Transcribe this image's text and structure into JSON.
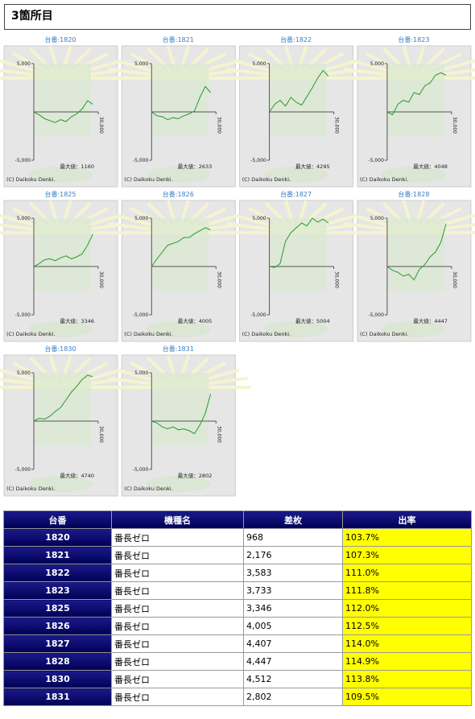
{
  "header": {
    "title": "3箇所目"
  },
  "chart_data": [
    {
      "type": "line",
      "title": "台番:1820",
      "x": [
        0,
        2500,
        5000,
        7500,
        10000,
        12500,
        15000,
        17500,
        20000,
        22500,
        25000,
        27500
      ],
      "values": [
        0,
        -300,
        -700,
        -900,
        -1100,
        -800,
        -1000,
        -500,
        -200,
        300,
        1160,
        800
      ],
      "color": "#2a9a2a",
      "xlim": [
        0,
        30000
      ],
      "ylim": [
        -6000,
        6000
      ],
      "yticks": [
        {
          "value": 5000,
          "label": "5,000"
        },
        {
          "value": -5000,
          "label": "-5,000"
        }
      ],
      "xticks": [
        {
          "value": 30000,
          "label": "30,000"
        }
      ],
      "annotation": "最大値：1160",
      "credit": "(C) Daikoku Denki."
    },
    {
      "type": "line",
      "title": "台番:1821",
      "x": [
        0,
        2500,
        5000,
        7500,
        10000,
        12500,
        15000,
        17500,
        20000,
        22500,
        25000,
        27500
      ],
      "values": [
        0,
        -400,
        -500,
        -800,
        -600,
        -700,
        -400,
        -200,
        100,
        1500,
        2633,
        2000
      ],
      "color": "#2a9a2a",
      "xlim": [
        0,
        30000
      ],
      "ylim": [
        -6000,
        6000
      ],
      "yticks": [
        {
          "value": 5000,
          "label": "5,000"
        },
        {
          "value": -5000,
          "label": "-5,000"
        }
      ],
      "xticks": [
        {
          "value": 30000,
          "label": "30,000"
        }
      ],
      "annotation": "最大値：2633",
      "credit": "(C) Daikoku Denki."
    },
    {
      "type": "line",
      "title": "台番:1822",
      "x": [
        0,
        2500,
        5000,
        7500,
        10000,
        12500,
        15000,
        17500,
        20000,
        22500,
        25000,
        27500
      ],
      "values": [
        0,
        800,
        1200,
        600,
        1500,
        1000,
        700,
        1600,
        2500,
        3500,
        4295,
        3700
      ],
      "color": "#2a9a2a",
      "xlim": [
        0,
        30000
      ],
      "ylim": [
        -6000,
        6000
      ],
      "yticks": [
        {
          "value": 5000,
          "label": "5,000"
        },
        {
          "value": -5000,
          "label": "-5,000"
        }
      ],
      "xticks": [
        {
          "value": 30000,
          "label": "30,000"
        }
      ],
      "annotation": "最大値：4295",
      "credit": "(C) Daikoku Denki."
    },
    {
      "type": "line",
      "title": "台番:1823",
      "x": [
        0,
        2500,
        5000,
        7500,
        10000,
        12500,
        15000,
        17500,
        20000,
        22500,
        25000,
        27500
      ],
      "values": [
        0,
        -300,
        800,
        1200,
        1000,
        2000,
        1800,
        2700,
        3000,
        3800,
        4048,
        3800
      ],
      "color": "#2a9a2a",
      "xlim": [
        0,
        30000
      ],
      "ylim": [
        -6000,
        6000
      ],
      "yticks": [
        {
          "value": 5000,
          "label": "5,000"
        },
        {
          "value": -5000,
          "label": "-5,000"
        }
      ],
      "xticks": [
        {
          "value": 30000,
          "label": "30,000"
        }
      ],
      "annotation": "最大値：4048",
      "credit": "(C) Daikoku Denki."
    },
    {
      "type": "line",
      "title": "台番:1825",
      "x": [
        0,
        2500,
        5000,
        7500,
        10000,
        12500,
        15000,
        17500,
        20000,
        22500,
        25000,
        27500
      ],
      "values": [
        0,
        300,
        700,
        800,
        600,
        900,
        1100,
        800,
        1000,
        1300,
        2200,
        3346
      ],
      "color": "#2a9a2a",
      "xlim": [
        0,
        30000
      ],
      "ylim": [
        -6000,
        6000
      ],
      "yticks": [
        {
          "value": 5000,
          "label": "5,000"
        },
        {
          "value": -5000,
          "label": "-5,000"
        }
      ],
      "xticks": [
        {
          "value": 30000,
          "label": "30,000"
        }
      ],
      "annotation": "最大値：3346",
      "credit": "(C) Daikoku Denki."
    },
    {
      "type": "line",
      "title": "台番:1826",
      "x": [
        0,
        2500,
        5000,
        7500,
        10000,
        12500,
        15000,
        17500,
        20000,
        22500,
        25000,
        27500
      ],
      "values": [
        0,
        800,
        1500,
        2200,
        2400,
        2600,
        3000,
        3000,
        3400,
        3700,
        4005,
        3800
      ],
      "color": "#2a9a2a",
      "xlim": [
        0,
        30000
      ],
      "ylim": [
        -6000,
        6000
      ],
      "yticks": [
        {
          "value": 5000,
          "label": "5,000"
        },
        {
          "value": -5000,
          "label": "-5,000"
        }
      ],
      "xticks": [
        {
          "value": 30000,
          "label": "30,000"
        }
      ],
      "annotation": "最大値：4005",
      "credit": "(C) Daikoku Denki."
    },
    {
      "type": "line",
      "title": "台番:1827",
      "x": [
        0,
        2500,
        5000,
        7500,
        10000,
        12500,
        15000,
        17500,
        20000,
        22500,
        25000,
        27500
      ],
      "values": [
        0,
        -100,
        300,
        2600,
        3500,
        4000,
        4500,
        4200,
        5004,
        4600,
        4900,
        4500
      ],
      "color": "#2a9a2a",
      "xlim": [
        0,
        30000
      ],
      "ylim": [
        -6000,
        6000
      ],
      "yticks": [
        {
          "value": 5000,
          "label": "5,000"
        },
        {
          "value": -5000,
          "label": "-5,000"
        }
      ],
      "xticks": [
        {
          "value": 30000,
          "label": "30,000"
        }
      ],
      "annotation": "最大値：5004",
      "credit": "(C) Daikoku Denki."
    },
    {
      "type": "line",
      "title": "台番:1828",
      "x": [
        0,
        2500,
        5000,
        7500,
        10000,
        12500,
        15000,
        17500,
        20000,
        22500,
        25000,
        27500
      ],
      "values": [
        0,
        -400,
        -600,
        -1000,
        -800,
        -1400,
        -300,
        200,
        1000,
        1500,
        2500,
        4447
      ],
      "color": "#2a9a2a",
      "xlim": [
        0,
        30000
      ],
      "ylim": [
        -6000,
        6000
      ],
      "yticks": [
        {
          "value": 5000,
          "label": "5,000"
        },
        {
          "value": -5000,
          "label": "-5,000"
        }
      ],
      "xticks": [
        {
          "value": 30000,
          "label": "30,000"
        }
      ],
      "annotation": "最大値：4447",
      "credit": "(C) Daikoku Denki."
    },
    {
      "type": "line",
      "title": "台番:1830",
      "x": [
        0,
        2500,
        5000,
        7500,
        10000,
        12500,
        15000,
        17500,
        20000,
        22500,
        25000,
        27500
      ],
      "values": [
        0,
        300,
        200,
        500,
        1000,
        1400,
        2200,
        3000,
        3600,
        4300,
        4740,
        4600
      ],
      "color": "#2a9a2a",
      "xlim": [
        0,
        30000
      ],
      "ylim": [
        -6000,
        6000
      ],
      "yticks": [
        {
          "value": 5000,
          "label": "5,000"
        },
        {
          "value": -5000,
          "label": "-5,000"
        }
      ],
      "xticks": [
        {
          "value": 30000,
          "label": "30,000"
        }
      ],
      "annotation": "最大値：4740",
      "credit": "(C) Daikoku Denki."
    },
    {
      "type": "line",
      "title": "台番:1831",
      "x": [
        0,
        2500,
        5000,
        7500,
        10000,
        12500,
        15000,
        17500,
        20000,
        22500,
        25000,
        27500
      ],
      "values": [
        0,
        -200,
        -600,
        -800,
        -600,
        -900,
        -800,
        -1000,
        -1300,
        -400,
        800,
        2802
      ],
      "color": "#2a9a2a",
      "xlim": [
        0,
        30000
      ],
      "ylim": [
        -6000,
        6000
      ],
      "yticks": [
        {
          "value": 5000,
          "label": "5,000"
        },
        {
          "value": -5000,
          "label": "-5,000"
        }
      ],
      "xticks": [
        {
          "value": 30000,
          "label": "30,000"
        }
      ],
      "annotation": "最大値：2802",
      "credit": "(C) Daikoku Denki."
    }
  ],
  "table": {
    "columns": [
      "台番",
      "機種名",
      "差枚",
      "出率"
    ],
    "rows": [
      [
        "1820",
        "番長ゼロ",
        "968",
        "103.7%"
      ],
      [
        "1821",
        "番長ゼロ",
        "2,176",
        "107.3%"
      ],
      [
        "1822",
        "番長ゼロ",
        "3,583",
        "111.0%"
      ],
      [
        "1823",
        "番長ゼロ",
        "3,733",
        "111.8%"
      ],
      [
        "1825",
        "番長ゼロ",
        "3,346",
        "112.0%"
      ],
      [
        "1826",
        "番長ゼロ",
        "4,005",
        "112.5%"
      ],
      [
        "1827",
        "番長ゼロ",
        "4,407",
        "114.0%"
      ],
      [
        "1828",
        "番長ゼロ",
        "4,447",
        "114.9%"
      ],
      [
        "1830",
        "番長ゼロ",
        "4,512",
        "113.8%"
      ],
      [
        "1831",
        "番長ゼロ",
        "2,802",
        "109.5%"
      ]
    ]
  }
}
